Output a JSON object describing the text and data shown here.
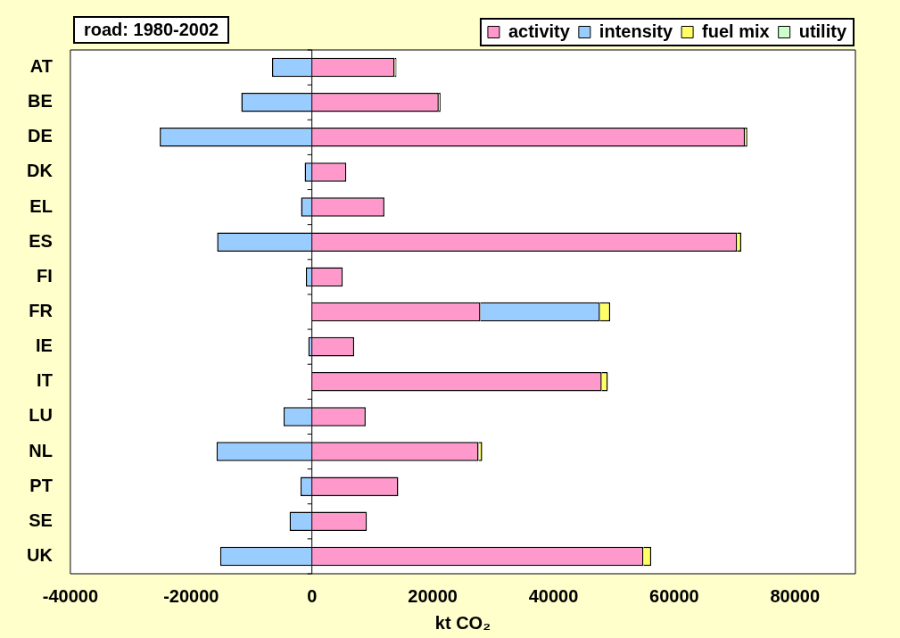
{
  "chart_data": {
    "type": "bar",
    "orientation": "horizontal",
    "stacked": true,
    "title": "road: 1980-2002",
    "xlabel": "kt CO₂",
    "categories": [
      "AT",
      "BE",
      "DE",
      "DK",
      "EL",
      "ES",
      "FI",
      "FR",
      "IE",
      "IT",
      "LU",
      "NL",
      "PT",
      "SE",
      "UK"
    ],
    "series": [
      {
        "name": "activity",
        "color": "#ff99cc",
        "values": [
          13700,
          21000,
          71700,
          5700,
          12000,
          70400,
          5100,
          27900,
          7000,
          48000,
          8900,
          27600,
          14300,
          9100,
          54900
        ]
      },
      {
        "name": "intensity",
        "color": "#99ccff",
        "values": [
          -6600,
          -11700,
          -25200,
          -1200,
          -1800,
          -15700,
          -1000,
          19800,
          -600,
          null,
          -4700,
          -15800,
          -1900,
          -3700,
          -15200
        ]
      },
      {
        "name": "fuel mix",
        "color": "#ffff66",
        "values": [
          300,
          300,
          400,
          null,
          null,
          700,
          null,
          1700,
          null,
          1000,
          null,
          600,
          null,
          null,
          1300
        ]
      },
      {
        "name": "utility",
        "color": "#ccffcc",
        "values": [
          null,
          null,
          null,
          null,
          null,
          null,
          null,
          null,
          null,
          null,
          null,
          null,
          null,
          null,
          null
        ]
      }
    ],
    "xlim": [
      -40000,
      90000
    ],
    "xticks": [
      -40000,
      -20000,
      0,
      20000,
      40000,
      60000,
      80000
    ],
    "ref_lines": [
      {
        "axis": "x",
        "value": 0,
        "color": "#000000"
      }
    ],
    "grid": false,
    "legend": "top right"
  }
}
